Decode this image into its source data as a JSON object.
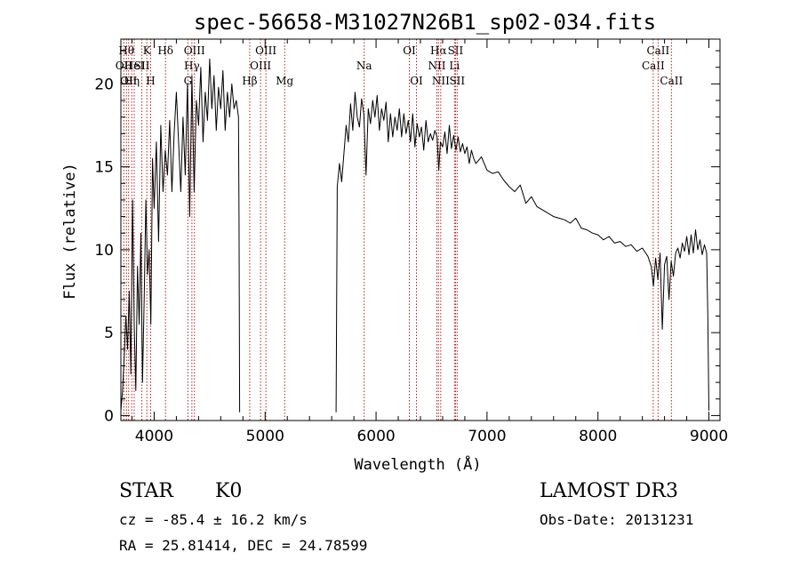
{
  "chart_data": {
    "type": "line",
    "title": "spec-56658-M31027N26B1_sp02-034.fits",
    "xlabel": "Wavelength (Å)",
    "ylabel": "Flux (relative)",
    "xlim": [
      3700,
      9100
    ],
    "ylim": [
      -0.3,
      22.7
    ],
    "xticks": [
      4000,
      5000,
      6000,
      7000,
      8000,
      9000
    ],
    "yticks": [
      0,
      5,
      10,
      15,
      20
    ],
    "grid": false,
    "colors": {
      "spectrum": "#000000",
      "lines": "#b22222"
    },
    "series": [
      {
        "name": "flux",
        "segments": [
          {
            "x": [
              3700,
              3715,
              3730,
              3745,
              3760,
              3775,
              3790,
              3805,
              3820,
              3835,
              3850,
              3865,
              3880,
              3895,
              3910,
              3925,
              3940,
              3955,
              3970,
              3985,
              4000,
              4020,
              4040,
              4060,
              4080,
              4100,
              4120,
              4140,
              4160,
              4180,
              4200,
              4220,
              4240,
              4260,
              4280,
              4300,
              4320,
              4340,
              4360,
              4380,
              4400,
              4420,
              4440,
              4460,
              4480,
              4500,
              4520,
              4540,
              4560,
              4580,
              4600,
              4620,
              4640,
              4660,
              4680,
              4700,
              4720,
              4740,
              4760,
              4765,
              4770
            ],
            "y": [
              0.3,
              1.5,
              3.5,
              6.0,
              4.0,
              7.5,
              2.5,
              13.0,
              5.5,
              1.5,
              9.0,
              5.5,
              11.0,
              2.0,
              7.0,
              13.0,
              8.5,
              10.0,
              5.5,
              15.5,
              12.5,
              16.5,
              10.5,
              17.5,
              13.5,
              16.0,
              14.5,
              17.8,
              13.5,
              17.0,
              19.5,
              16.5,
              13.5,
              18.0,
              14.5,
              20.0,
              12.0,
              20.5,
              13.5,
              19.0,
              17.5,
              21.0,
              16.5,
              19.5,
              17.8,
              21.5,
              18.5,
              20.5,
              17.2,
              19.8,
              18.5,
              20.8,
              17.2,
              19.5,
              18.0,
              20.0,
              18.5,
              19.0,
              18.0,
              12.0,
              0.2
            ]
          },
          {
            "x": [
              5640,
              5650,
              5670,
              5690,
              5710,
              5730,
              5750,
              5770,
              5790,
              5810,
              5830,
              5850,
              5870,
              5890,
              5910,
              5930,
              5950,
              5970,
              5990,
              6010,
              6030,
              6050,
              6070,
              6090,
              6110,
              6130,
              6150,
              6170,
              6190,
              6210,
              6230,
              6250,
              6270,
              6290,
              6310,
              6330,
              6350,
              6370,
              6390,
              6410,
              6430,
              6450,
              6470,
              6490,
              6510,
              6530,
              6550,
              6565,
              6580,
              6600,
              6620,
              6640,
              6660,
              6680,
              6700,
              6720,
              6740,
              6760,
              6780,
              6800,
              6820,
              6840,
              6860,
              6880,
              6900,
              6950,
              7000,
              7050,
              7100,
              7150,
              7200,
              7250,
              7300,
              7350,
              7400,
              7450,
              7500,
              7550,
              7600,
              7650,
              7700,
              7750,
              7800,
              7850,
              7900,
              7950,
              8000,
              8050,
              8100,
              8150,
              8200,
              8250,
              8300,
              8350,
              8400,
              8450,
              8480,
              8500,
              8520,
              8540,
              8560,
              8580,
              8600,
              8620,
              8640,
              8660,
              8680,
              8700,
              8720,
              8740,
              8760,
              8780,
              8800,
              8820,
              8840,
              8860,
              8880,
              8900,
              8920,
              8940,
              8960,
              8980,
              8990,
              9000
            ],
            "y": [
              0.2,
              13.8,
              15.2,
              14.1,
              15.8,
              17.5,
              16.5,
              18.8,
              17.2,
              19.5,
              18.0,
              17.4,
              19.1,
              18.2,
              14.5,
              18.5,
              17.6,
              19.0,
              18.0,
              19.3,
              17.2,
              18.5,
              17.8,
              18.9,
              16.5,
              18.2,
              16.8,
              18.0,
              17.2,
              18.5,
              16.8,
              18.2,
              17.0,
              17.8,
              16.5,
              18.2,
              16.2,
              17.6,
              16.8,
              17.4,
              16.0,
              17.8,
              16.5,
              17.0,
              16.6,
              17.2,
              16.8,
              14.8,
              16.5,
              16.2,
              17.1,
              15.8,
              17.5,
              16.1,
              16.9,
              16.0,
              16.8,
              15.9,
              16.4,
              15.8,
              16.2,
              15.2,
              16.0,
              15.5,
              15.2,
              15.6,
              14.8,
              14.6,
              14.7,
              14.2,
              13.8,
              13.5,
              13.9,
              12.8,
              13.2,
              12.6,
              12.4,
              12.2,
              12.0,
              11.9,
              11.8,
              11.6,
              11.9,
              11.3,
              11.2,
              11.0,
              10.9,
              10.6,
              10.8,
              10.4,
              10.5,
              10.2,
              10.3,
              9.9,
              10.1,
              9.6,
              9.0,
              7.8,
              9.5,
              8.2,
              9.8,
              5.2,
              9.1,
              9.6,
              7.0,
              9.3,
              8.4,
              9.8,
              10.1,
              9.5,
              10.4,
              9.9,
              10.8,
              9.7,
              10.9,
              9.8,
              11.2,
              10.0,
              10.6,
              9.7,
              10.3,
              9.8,
              6.0,
              0.3
            ]
          }
        ]
      }
    ],
    "spectral_lines": [
      {
        "x": 3727,
        "label": "OII",
        "row": 2
      },
      {
        "x": 3750,
        "label": "Hθ",
        "row": 1
      },
      {
        "x": 3770,
        "label": "OII",
        "row": 3
      },
      {
        "x": 3798,
        "label": "Hη",
        "row": 3
      },
      {
        "x": 3820,
        "label": "HeI",
        "row": 2
      },
      {
        "x": 3889,
        "label": "SII",
        "row": 2
      },
      {
        "x": 3934,
        "label": "K",
        "row": 1
      },
      {
        "x": 3968,
        "label": "H",
        "row": 3
      },
      {
        "x": 4102,
        "label": "Hδ",
        "row": 1
      },
      {
        "x": 4304,
        "label": "G",
        "row": 3
      },
      {
        "x": 4340,
        "label": "Hγ",
        "row": 2
      },
      {
        "x": 4363,
        "label": "OIII",
        "row": 1
      },
      {
        "x": 4861,
        "label": "Hβ",
        "row": 3
      },
      {
        "x": 4959,
        "label": "OIII",
        "row": 2
      },
      {
        "x": 5007,
        "label": "OIII",
        "row": 1
      },
      {
        "x": 5176,
        "label": "Mg",
        "row": 3
      },
      {
        "x": 5893,
        "label": "Na",
        "row": 2
      },
      {
        "x": 6300,
        "label": "OI",
        "row": 1
      },
      {
        "x": 6364,
        "label": "OI",
        "row": 3
      },
      {
        "x": 6548,
        "label": "NII",
        "row": 2
      },
      {
        "x": 6563,
        "label": "Hα",
        "row": 1
      },
      {
        "x": 6583,
        "label": "NII",
        "row": 3
      },
      {
        "x": 6707,
        "label": "Li",
        "row": 2
      },
      {
        "x": 6716,
        "label": "SII",
        "row": 1
      },
      {
        "x": 6731,
        "label": "SII",
        "row": 3
      },
      {
        "x": 8498,
        "label": "CaII",
        "row": 2
      },
      {
        "x": 8542,
        "label": "CaII",
        "row": 1
      },
      {
        "x": 8662,
        "label": "CaII",
        "row": 3
      }
    ]
  },
  "info": {
    "class": "STAR",
    "subclass": "K0",
    "survey": "LAMOST DR3",
    "cz": "cz = -85.4 ± 16.2 km/s",
    "obs_date": "Obs-Date: 20131231",
    "coords": "RA =  25.81414, DEC =  24.78599"
  }
}
